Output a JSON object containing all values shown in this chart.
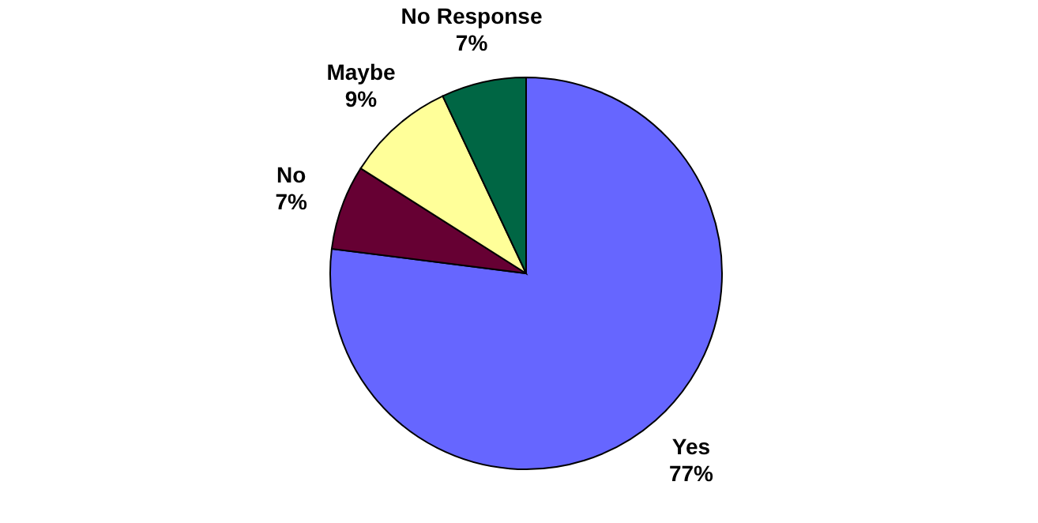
{
  "chart_data": {
    "type": "pie",
    "categories": [
      "Yes",
      "No",
      "Maybe",
      "No Response"
    ],
    "values": [
      77,
      7,
      9,
      7
    ],
    "value_labels": [
      "77%",
      "7%",
      "9%",
      "7%"
    ],
    "colors": [
      "#6666ff",
      "#660033",
      "#ffff99",
      "#006644"
    ],
    "legend": false
  }
}
